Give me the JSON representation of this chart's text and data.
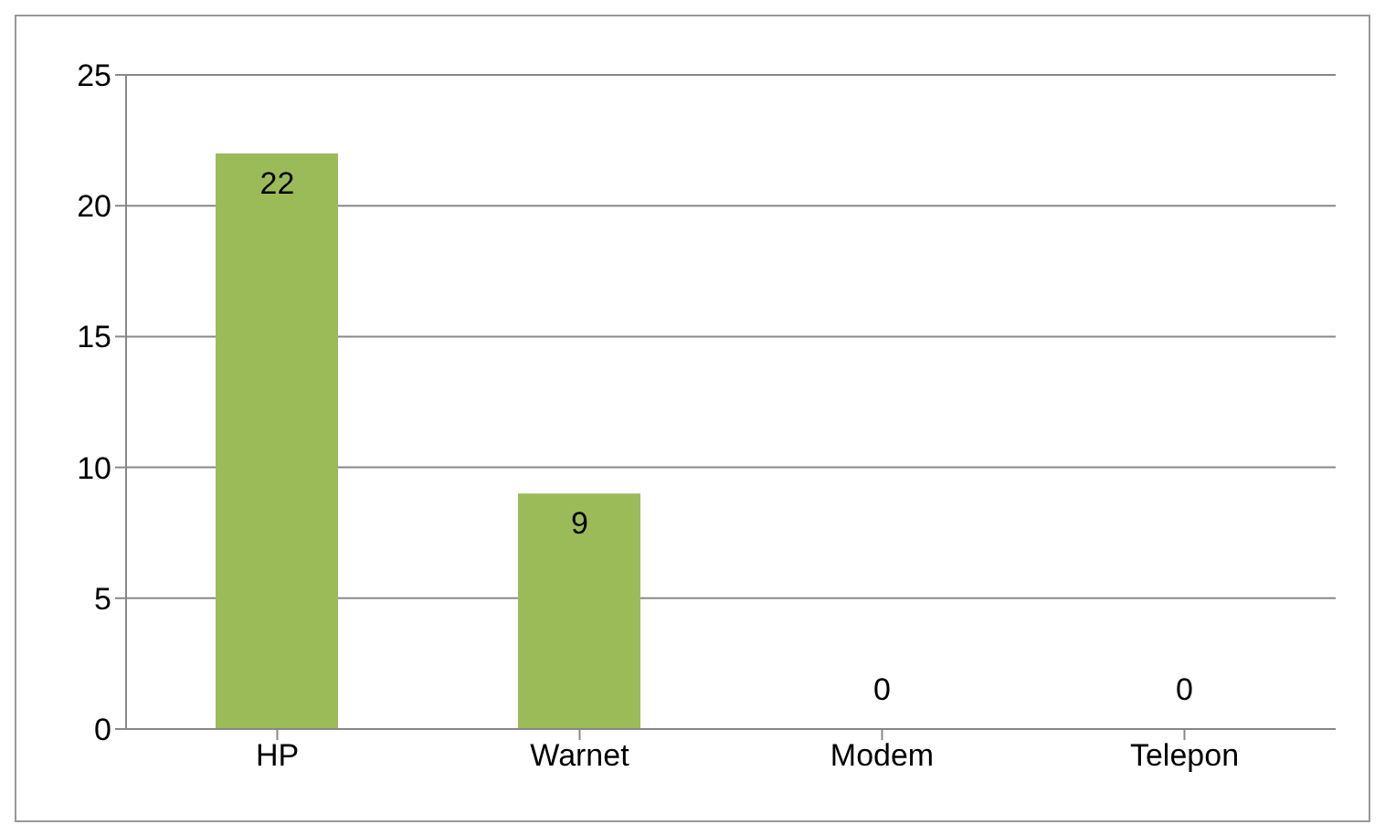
{
  "chart_data": {
    "type": "bar",
    "categories": [
      "HP",
      "Warnet",
      "Modem",
      "Telepon"
    ],
    "values": [
      22,
      9,
      0,
      0
    ],
    "color": "#9bbb59",
    "ylim": [
      0,
      25
    ],
    "yticks": [
      0,
      5,
      10,
      15,
      20,
      25
    ],
    "grid": "y",
    "data_labels": true
  }
}
